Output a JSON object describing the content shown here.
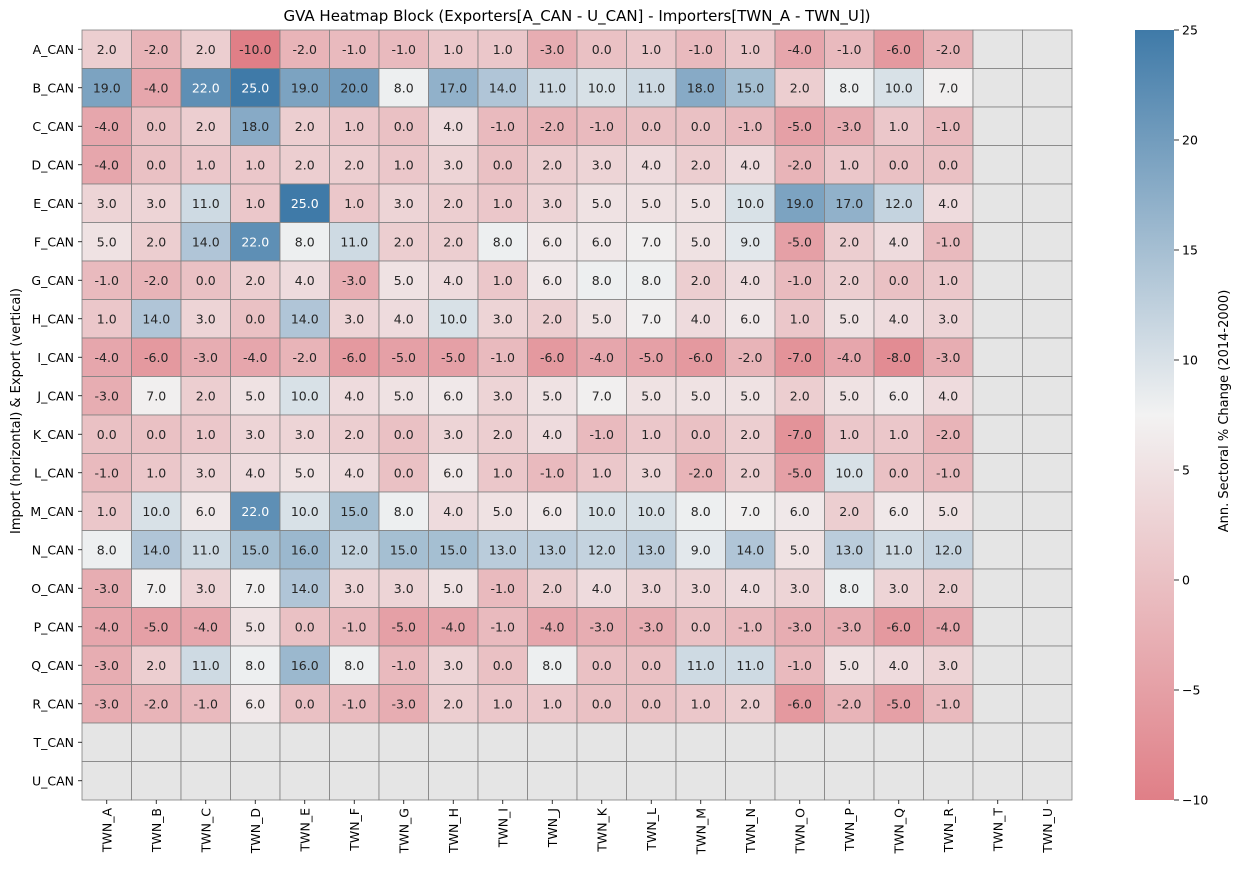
{
  "chart_data": {
    "type": "heatmap",
    "title": "GVA Heatmap Block (Exporters[A_CAN - U_CAN] - Importers[TWN_A - TWN_U])",
    "xlabel": "",
    "ylabel": "Import (horizontal) & Export (vertical)",
    "colorbar_label": "Ann. Sectoral % Change (2014-2000)",
    "colorbar_range": [
      -10,
      25
    ],
    "colorbar_ticks": [
      "−10",
      "−5",
      "0",
      "5",
      "10",
      "15",
      "20",
      "25"
    ],
    "colorbar_tick_values": [
      -10,
      -5,
      0,
      5,
      10,
      15,
      20,
      25
    ],
    "colors": {
      "low": "#e07f87",
      "mid": "#f2f2f2",
      "high": "#3f7aa8",
      "missing": "#e5e5e5",
      "gridline": "#808080"
    },
    "x_labels": [
      "TWN_A",
      "TWN_B",
      "TWN_C",
      "TWN_D",
      "TWN_E",
      "TWN_F",
      "TWN_G",
      "TWN_H",
      "TWN_I",
      "TWN_J",
      "TWN_K",
      "TWN_L",
      "TWN_M",
      "TWN_N",
      "TWN_O",
      "TWN_P",
      "TWN_Q",
      "TWN_R",
      "TWN_T",
      "TWN_U"
    ],
    "y_labels": [
      "A_CAN",
      "B_CAN",
      "C_CAN",
      "D_CAN",
      "E_CAN",
      "F_CAN",
      "G_CAN",
      "H_CAN",
      "I_CAN",
      "J_CAN",
      "K_CAN",
      "L_CAN",
      "M_CAN",
      "N_CAN",
      "O_CAN",
      "P_CAN",
      "Q_CAN",
      "R_CAN",
      "T_CAN",
      "U_CAN"
    ],
    "values": [
      [
        2.0,
        -2.0,
        2.0,
        -10.0,
        -2.0,
        -1.0,
        -1.0,
        1.0,
        1.0,
        -3.0,
        0.0,
        1.0,
        -1.0,
        1.0,
        -4.0,
        -1.0,
        -6.0,
        -2.0,
        null,
        null
      ],
      [
        19.0,
        -4.0,
        22.0,
        25.0,
        19.0,
        20.0,
        8.0,
        17.0,
        14.0,
        11.0,
        10.0,
        11.0,
        18.0,
        15.0,
        2.0,
        8.0,
        10.0,
        7.0,
        null,
        null
      ],
      [
        -4.0,
        0.0,
        2.0,
        18.0,
        2.0,
        1.0,
        0.0,
        4.0,
        -1.0,
        -2.0,
        -1.0,
        0.0,
        0.0,
        -1.0,
        -5.0,
        -3.0,
        1.0,
        -1.0,
        null,
        null
      ],
      [
        -4.0,
        0.0,
        1.0,
        1.0,
        2.0,
        2.0,
        1.0,
        3.0,
        0.0,
        2.0,
        3.0,
        4.0,
        2.0,
        4.0,
        -2.0,
        1.0,
        0.0,
        0.0,
        null,
        null
      ],
      [
        3.0,
        3.0,
        11.0,
        1.0,
        25.0,
        1.0,
        3.0,
        2.0,
        1.0,
        3.0,
        5.0,
        5.0,
        5.0,
        10.0,
        19.0,
        17.0,
        12.0,
        4.0,
        null,
        null
      ],
      [
        5.0,
        2.0,
        14.0,
        22.0,
        8.0,
        11.0,
        2.0,
        2.0,
        8.0,
        6.0,
        6.0,
        7.0,
        5.0,
        9.0,
        -5.0,
        2.0,
        4.0,
        -1.0,
        null,
        null
      ],
      [
        -1.0,
        -2.0,
        0.0,
        2.0,
        4.0,
        -3.0,
        5.0,
        4.0,
        1.0,
        6.0,
        8.0,
        8.0,
        2.0,
        4.0,
        -1.0,
        2.0,
        0.0,
        1.0,
        null,
        null
      ],
      [
        1.0,
        14.0,
        3.0,
        0.0,
        14.0,
        3.0,
        4.0,
        10.0,
        3.0,
        2.0,
        5.0,
        7.0,
        4.0,
        6.0,
        1.0,
        5.0,
        4.0,
        3.0,
        null,
        null
      ],
      [
        -4.0,
        -6.0,
        -3.0,
        -4.0,
        -2.0,
        -6.0,
        -5.0,
        -5.0,
        -1.0,
        -6.0,
        -4.0,
        -5.0,
        -6.0,
        -2.0,
        -7.0,
        -4.0,
        -8.0,
        -3.0,
        null,
        null
      ],
      [
        -3.0,
        7.0,
        2.0,
        5.0,
        10.0,
        4.0,
        5.0,
        6.0,
        3.0,
        5.0,
        7.0,
        5.0,
        5.0,
        5.0,
        2.0,
        5.0,
        6.0,
        4.0,
        null,
        null
      ],
      [
        0.0,
        0.0,
        1.0,
        3.0,
        3.0,
        2.0,
        0.0,
        3.0,
        2.0,
        4.0,
        -1.0,
        1.0,
        0.0,
        2.0,
        -7.0,
        1.0,
        1.0,
        -2.0,
        null,
        null
      ],
      [
        -1.0,
        1.0,
        3.0,
        4.0,
        5.0,
        4.0,
        0.0,
        6.0,
        1.0,
        -1.0,
        1.0,
        3.0,
        -2.0,
        2.0,
        -5.0,
        10.0,
        0.0,
        -1.0,
        null,
        null
      ],
      [
        1.0,
        10.0,
        6.0,
        22.0,
        10.0,
        15.0,
        8.0,
        4.0,
        5.0,
        6.0,
        10.0,
        10.0,
        8.0,
        7.0,
        6.0,
        2.0,
        6.0,
        5.0,
        null,
        null
      ],
      [
        8.0,
        14.0,
        11.0,
        15.0,
        16.0,
        12.0,
        15.0,
        15.0,
        13.0,
        13.0,
        12.0,
        13.0,
        9.0,
        14.0,
        5.0,
        13.0,
        11.0,
        12.0,
        null,
        null
      ],
      [
        -3.0,
        7.0,
        3.0,
        7.0,
        14.0,
        3.0,
        3.0,
        5.0,
        -1.0,
        2.0,
        4.0,
        3.0,
        3.0,
        4.0,
        3.0,
        8.0,
        3.0,
        2.0,
        null,
        null
      ],
      [
        -4.0,
        -5.0,
        -4.0,
        5.0,
        0.0,
        -1.0,
        -5.0,
        -4.0,
        -1.0,
        -4.0,
        -3.0,
        -3.0,
        0.0,
        -1.0,
        -3.0,
        -3.0,
        -6.0,
        -4.0,
        null,
        null
      ],
      [
        -3.0,
        2.0,
        11.0,
        8.0,
        16.0,
        8.0,
        -1.0,
        3.0,
        0.0,
        8.0,
        0.0,
        0.0,
        11.0,
        11.0,
        -1.0,
        5.0,
        4.0,
        3.0,
        null,
        null
      ],
      [
        -3.0,
        -2.0,
        -1.0,
        6.0,
        0.0,
        -1.0,
        -3.0,
        2.0,
        1.0,
        1.0,
        0.0,
        0.0,
        1.0,
        2.0,
        -6.0,
        -2.0,
        -5.0,
        -1.0,
        null,
        null
      ],
      [
        null,
        null,
        null,
        null,
        null,
        null,
        null,
        null,
        null,
        null,
        null,
        null,
        null,
        null,
        null,
        null,
        null,
        null,
        null,
        null
      ],
      [
        null,
        null,
        null,
        null,
        null,
        null,
        null,
        null,
        null,
        null,
        null,
        null,
        null,
        null,
        null,
        null,
        null,
        null,
        null,
        null
      ]
    ]
  }
}
